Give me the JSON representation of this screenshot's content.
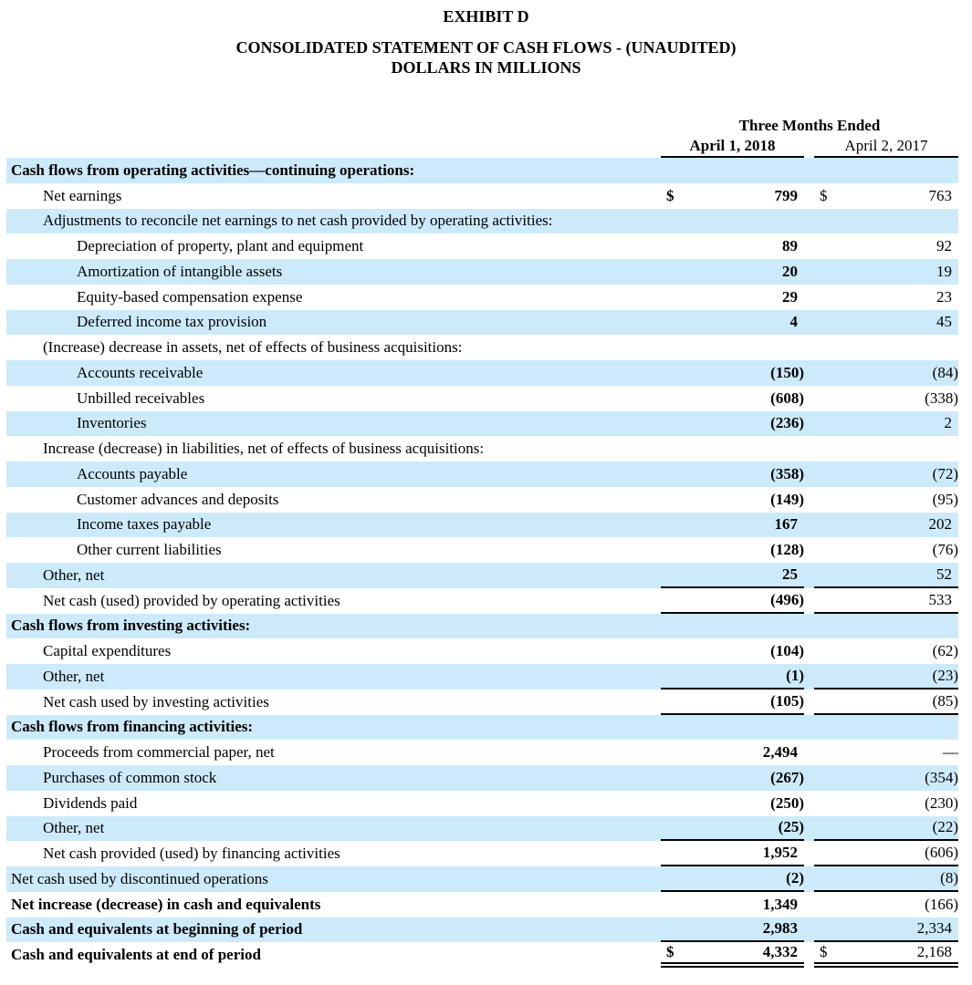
{
  "header": {
    "exhibit": "EXHIBIT D",
    "statement_title": "CONSOLIDATED STATEMENT OF CASH FLOWS - (UNAUDITED)",
    "units": "DOLLARS IN MILLIONS"
  },
  "colors": {
    "row_shade": "#cdeafb",
    "text": "#000000",
    "background": "#ffffff"
  },
  "table": {
    "period_header": "Three Months Ended",
    "columns": [
      "April 1, 2018",
      "April 2, 2017"
    ],
    "currency_symbol": "$",
    "empty_dash": "—",
    "rows": [
      {
        "label": "Cash flows from operating activities—continuing operations:",
        "indent": 0,
        "bold": true,
        "dollar": false,
        "v1": "",
        "v2": "",
        "line": null
      },
      {
        "label": "Net earnings",
        "indent": 1,
        "bold": false,
        "dollar": true,
        "v1": "799",
        "v2": "763",
        "line": null
      },
      {
        "label": "Adjustments to reconcile net earnings to net cash provided by operating activities:",
        "indent": 1,
        "bold": false,
        "dollar": false,
        "v1": "",
        "v2": "",
        "line": null
      },
      {
        "label": "Depreciation of property, plant and equipment",
        "indent": 2,
        "bold": false,
        "dollar": false,
        "v1": "89",
        "v2": "92",
        "line": null
      },
      {
        "label": "Amortization of intangible assets",
        "indent": 2,
        "bold": false,
        "dollar": false,
        "v1": "20",
        "v2": "19",
        "line": null
      },
      {
        "label": "Equity-based compensation expense",
        "indent": 2,
        "bold": false,
        "dollar": false,
        "v1": "29",
        "v2": "23",
        "line": null
      },
      {
        "label": "Deferred income tax provision",
        "indent": 2,
        "bold": false,
        "dollar": false,
        "v1": "4",
        "v2": "45",
        "line": null
      },
      {
        "label": "(Increase) decrease in assets, net of effects of business acquisitions:",
        "indent": 1,
        "bold": false,
        "dollar": false,
        "v1": "",
        "v2": "",
        "line": null
      },
      {
        "label": "Accounts receivable",
        "indent": 2,
        "bold": false,
        "dollar": false,
        "v1": "(150)",
        "v2": "(84)",
        "line": null
      },
      {
        "label": "Unbilled receivables",
        "indent": 2,
        "bold": false,
        "dollar": false,
        "v1": "(608)",
        "v2": "(338)",
        "line": null
      },
      {
        "label": "Inventories",
        "indent": 2,
        "bold": false,
        "dollar": false,
        "v1": "(236)",
        "v2": "2",
        "line": null
      },
      {
        "label": "Increase (decrease) in liabilities, net of effects of business acquisitions:",
        "indent": 1,
        "bold": false,
        "dollar": false,
        "v1": "",
        "v2": "",
        "line": null
      },
      {
        "label": "Accounts payable",
        "indent": 2,
        "bold": false,
        "dollar": false,
        "v1": "(358)",
        "v2": "(72)",
        "line": null
      },
      {
        "label": "Customer advances and deposits",
        "indent": 2,
        "bold": false,
        "dollar": false,
        "v1": "(149)",
        "v2": "(95)",
        "line": null
      },
      {
        "label": "Income taxes payable",
        "indent": 2,
        "bold": false,
        "dollar": false,
        "v1": "167",
        "v2": "202",
        "line": null
      },
      {
        "label": "Other current liabilities",
        "indent": 2,
        "bold": false,
        "dollar": false,
        "v1": "(128)",
        "v2": "(76)",
        "line": null
      },
      {
        "label": "Other, net",
        "indent": 1,
        "bold": false,
        "dollar": false,
        "v1": "25",
        "v2": "52",
        "line": "single"
      },
      {
        "label": "Net cash (used) provided by operating activities",
        "indent": 1,
        "bold": false,
        "dollar": false,
        "v1": "(496)",
        "v2": "533",
        "line": "single"
      },
      {
        "label": "Cash flows from investing activities:",
        "indent": 0,
        "bold": true,
        "dollar": false,
        "v1": "",
        "v2": "",
        "line": null
      },
      {
        "label": "Capital expenditures",
        "indent": 1,
        "bold": false,
        "dollar": false,
        "v1": "(104)",
        "v2": "(62)",
        "line": null
      },
      {
        "label": "Other, net",
        "indent": 1,
        "bold": false,
        "dollar": false,
        "v1": "(1)",
        "v2": "(23)",
        "line": "single"
      },
      {
        "label": "Net cash used by investing activities",
        "indent": 1,
        "bold": false,
        "dollar": false,
        "v1": "(105)",
        "v2": "(85)",
        "line": "single"
      },
      {
        "label": "Cash flows from financing activities:",
        "indent": 0,
        "bold": true,
        "dollar": false,
        "v1": "",
        "v2": "",
        "line": null
      },
      {
        "label": "Proceeds from commercial paper, net",
        "indent": 1,
        "bold": false,
        "dollar": false,
        "v1": "2,494",
        "v2": "—",
        "line": null
      },
      {
        "label": "Purchases of common stock",
        "indent": 1,
        "bold": false,
        "dollar": false,
        "v1": "(267)",
        "v2": "(354)",
        "line": null
      },
      {
        "label": "Dividends paid",
        "indent": 1,
        "bold": false,
        "dollar": false,
        "v1": "(250)",
        "v2": "(230)",
        "line": null
      },
      {
        "label": "Other, net",
        "indent": 1,
        "bold": false,
        "dollar": false,
        "v1": "(25)",
        "v2": "(22)",
        "line": "single"
      },
      {
        "label": "Net cash provided (used) by financing activities",
        "indent": 1,
        "bold": false,
        "dollar": false,
        "v1": "1,952",
        "v2": "(606)",
        "line": "single"
      },
      {
        "label": "Net cash used by discontinued operations",
        "indent": 0,
        "bold": false,
        "dollar": false,
        "v1": "(2)",
        "v2": "(8)",
        "line": "single"
      },
      {
        "label": "Net increase (decrease) in cash and equivalents",
        "indent": 0,
        "bold": true,
        "dollar": false,
        "v1": "1,349",
        "v2": "(166)",
        "line": null
      },
      {
        "label": "Cash and equivalents at beginning of period",
        "indent": 0,
        "bold": true,
        "dollar": false,
        "v1": "2,983",
        "v2": "2,334",
        "line": "single"
      },
      {
        "label": "Cash and equivalents at end of period",
        "indent": 0,
        "bold": true,
        "dollar": true,
        "v1": "4,332",
        "v2": "2,168",
        "line": "double"
      }
    ]
  }
}
